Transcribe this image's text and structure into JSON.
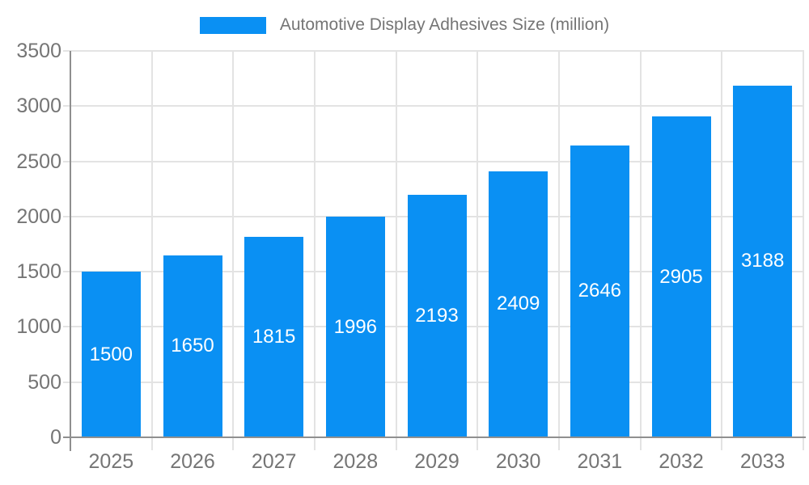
{
  "legend": {
    "label": "Automotive Display Adhesives Size (million)"
  },
  "chart_data": {
    "type": "bar",
    "title": "Automotive Display Adhesives Size (million)",
    "categories": [
      "2025",
      "2026",
      "2027",
      "2028",
      "2029",
      "2030",
      "2031",
      "2032",
      "2033"
    ],
    "values": [
      1500,
      1650,
      1815,
      1996,
      2193,
      2409,
      2646,
      2905,
      3188
    ],
    "xlabel": "",
    "ylabel": "",
    "ylim": [
      0,
      3500
    ],
    "yticks": [
      0,
      500,
      1000,
      1500,
      2000,
      2500,
      3000,
      3500
    ],
    "grid": true,
    "legend_position": "top-center",
    "bar_color": "#0a90f3",
    "value_label_color": "#ffffff",
    "grid_color": "#e3e3e3",
    "axis_color": "#8f8f8f",
    "tick_label_color": "#757575"
  }
}
